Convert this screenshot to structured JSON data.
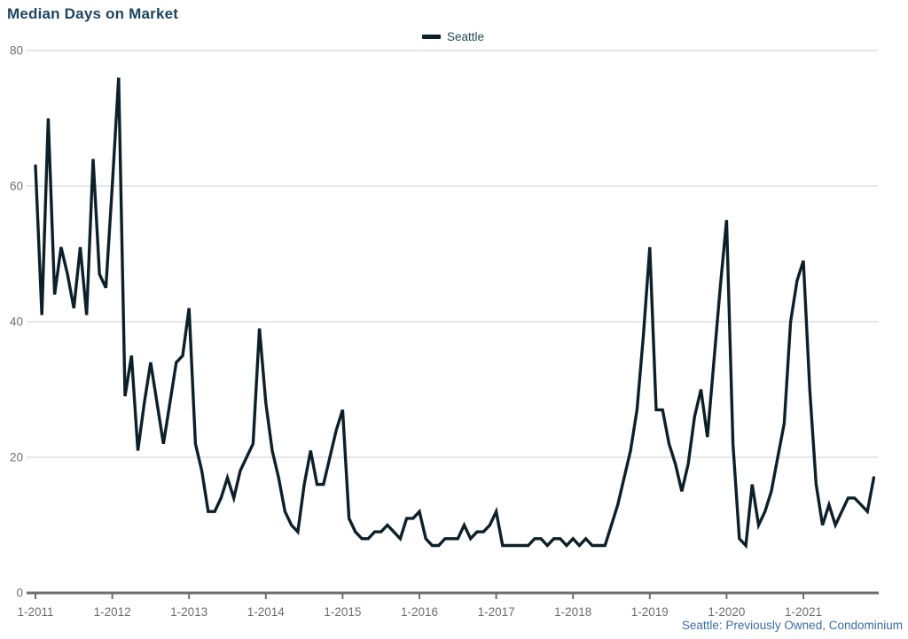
{
  "chart_data": {
    "type": "line",
    "title": "Median Days on Market",
    "legend": {
      "label": "Seattle",
      "position": "top-center"
    },
    "source_note": "Seattle: Previously Owned, Condominium",
    "frequency": "monthly",
    "x_start": "2011-01",
    "x_end": "2021-12",
    "x_tick_labels": [
      "1-2011",
      "1-2012",
      "1-2013",
      "1-2014",
      "1-2015",
      "1-2016",
      "1-2017",
      "1-2018",
      "1-2019",
      "1-2020",
      "1-2021"
    ],
    "x_tick_month_index": [
      0,
      12,
      24,
      36,
      48,
      60,
      72,
      84,
      96,
      108,
      120
    ],
    "y_ticks": [
      0,
      20,
      40,
      60,
      80
    ],
    "ylim": [
      0,
      80
    ],
    "grid": "horizontal",
    "xlabel": "",
    "ylabel": "",
    "series": [
      {
        "name": "Seattle",
        "color": "#0d2029",
        "values": [
          63,
          41,
          70,
          44,
          51,
          47,
          42,
          51,
          41,
          64,
          47,
          45,
          60,
          76,
          29,
          35,
          21,
          28,
          34,
          28,
          22,
          28,
          34,
          35,
          42,
          22,
          18,
          12,
          12,
          14,
          17,
          14,
          18,
          20,
          22,
          39,
          28,
          21,
          17,
          12,
          10,
          9,
          16,
          21,
          16,
          16,
          20,
          24,
          27,
          11,
          9,
          8,
          8,
          9,
          9,
          10,
          9,
          8,
          11,
          11,
          12,
          8,
          7,
          7,
          8,
          8,
          8,
          10,
          8,
          9,
          9,
          10,
          12,
          7,
          7,
          7,
          7,
          7,
          8,
          8,
          7,
          8,
          8,
          7,
          8,
          7,
          8,
          7,
          7,
          7,
          10,
          13,
          17,
          21,
          27,
          38,
          51,
          27,
          27,
          22,
          19,
          15,
          19,
          26,
          30,
          23,
          34,
          45,
          55,
          22,
          8,
          7,
          16,
          10,
          12,
          15,
          20,
          25,
          40,
          46,
          49,
          30,
          16,
          10,
          13,
          10,
          12,
          14,
          14,
          13,
          12,
          17
        ]
      }
    ]
  },
  "colors": {
    "title": "#1d4460",
    "legend_label": "#24475e",
    "axis_labels": "#6e6e6e",
    "gridline": "#cccccc",
    "axis_line": "#6e6e6e",
    "source_note": "#3a6ea5",
    "line": "#0d2029",
    "background": "#ffffff"
  }
}
